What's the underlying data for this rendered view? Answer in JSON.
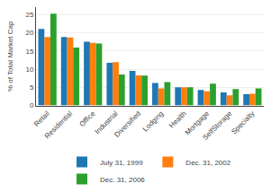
{
  "chart_data": {
    "type": "bar",
    "categories": [
      "Retail",
      "Residential",
      "Office",
      "Industrial",
      "Diversified",
      "Lodging",
      "Health",
      "Mortgage",
      "SelfStorage",
      "Specialty"
    ],
    "series": [
      {
        "name": "July 31, 1999",
        "values": [
          21.0,
          18.8,
          17.5,
          11.7,
          9.5,
          6.2,
          5.0,
          4.3,
          3.6,
          3.1
        ]
      },
      {
        "name": "Dec. 31, 2002",
        "values": [
          18.8,
          18.7,
          17.2,
          11.9,
          8.3,
          4.7,
          5.0,
          3.9,
          2.8,
          3.2
        ]
      },
      {
        "name": "Dec. 31, 2006",
        "values": [
          25.2,
          15.9,
          17.0,
          8.5,
          8.2,
          6.4,
          5.0,
          6.0,
          4.5,
          4.7
        ]
      }
    ],
    "ylabel": "% of Total Market Cap",
    "ylim": [
      0,
      27
    ],
    "yticks": [
      0,
      5,
      10,
      15,
      20,
      25
    ],
    "grid": true,
    "legend": "bottom"
  }
}
